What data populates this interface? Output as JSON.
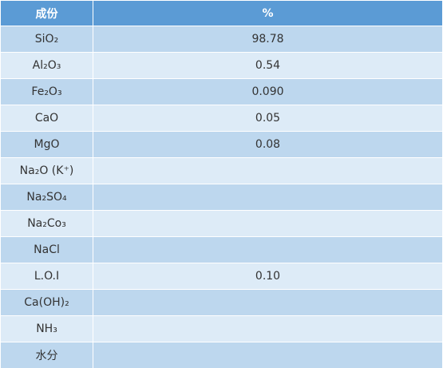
{
  "table": {
    "header": [
      "成份",
      "%"
    ],
    "rows": [
      {
        "component": "SiO₂",
        "percent": "98.78"
      },
      {
        "component": "Al₂O₃",
        "percent": "0.54"
      },
      {
        "component": "Fe₂O₃",
        "percent": "0.090"
      },
      {
        "component": "CaO",
        "percent": "0.05"
      },
      {
        "component": "MgO",
        "percent": "0.08"
      },
      {
        "component": "Na₂O (K⁺)"
      },
      {
        "component": "Na₂SO₄"
      },
      {
        "component": "Na₂Co₃"
      },
      {
        "component": "NaCl"
      },
      {
        "component": "L.O.I",
        "percent": "0.10"
      },
      {
        "component": "Ca(OH)₂"
      },
      {
        "component": "NH₃"
      },
      {
        "component": "水分"
      }
    ]
  }
}
